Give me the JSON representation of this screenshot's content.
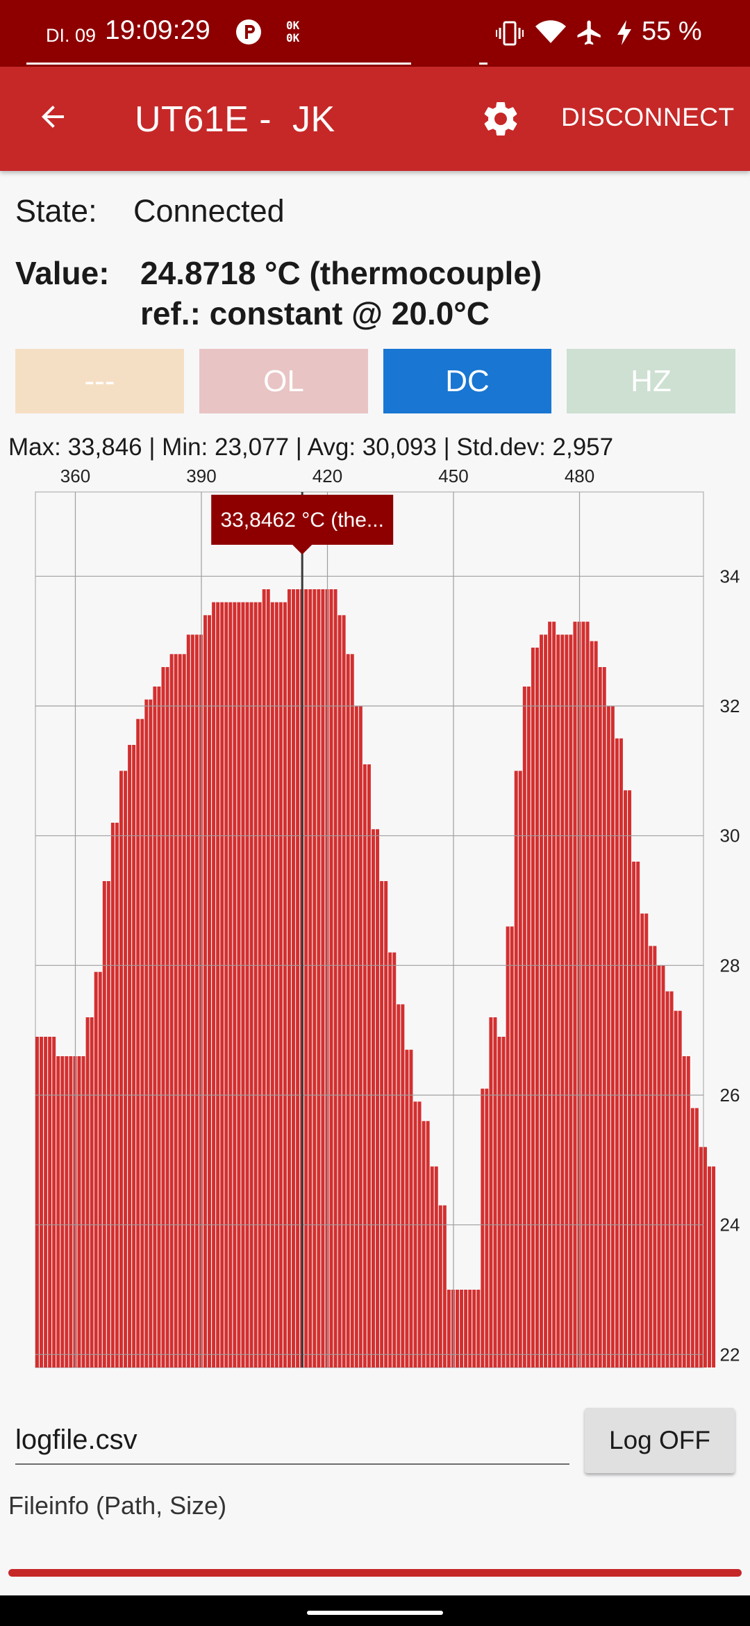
{
  "status_bar": {
    "day": "DI. 09",
    "time": "19:09:29",
    "ok_icon_text": "0K\n0K",
    "battery": "55 %",
    "icons": [
      "p-circle-icon",
      "ok-icon",
      "vibrate-icon",
      "wifi-icon",
      "airplane-icon",
      "charging-icon"
    ]
  },
  "app_bar": {
    "title": "UT61E -  JK",
    "disconnect_label": "DISCONNECT",
    "colors": {
      "bar": "#c62828",
      "status": "#8e0000"
    }
  },
  "state": {
    "label": "State:",
    "value": "Connected"
  },
  "value": {
    "label": "Value:",
    "line1": "24.8718 °C (thermocouple)",
    "line2": "ref.: constant @ 20.0°C"
  },
  "indicators": [
    {
      "label": "---",
      "active": false,
      "color": "#f5dfc4"
    },
    {
      "label": "OL",
      "active": false,
      "color": "#e9c4c4"
    },
    {
      "label": "DC",
      "active": true,
      "color": "#1976d2"
    },
    {
      "label": "HZ",
      "active": false,
      "color": "#cde0d2"
    }
  ],
  "stats_text": "Max: 33,846 | Min: 23,077 | Avg: 30,093 | Std.dev: 2,957",
  "chart_data": {
    "type": "bar",
    "x_start": 351,
    "x_step": 1,
    "xlim": [
      350.5,
      509.5
    ],
    "ylim": [
      21.8,
      35.3
    ],
    "x_ticks": [
      360,
      390,
      420,
      450,
      480
    ],
    "y_ticks": [
      22,
      24,
      26,
      28,
      30,
      32,
      34
    ],
    "x_tick_labels": [
      "360",
      "390",
      "420",
      "450",
      "480"
    ],
    "y_tick_labels": [
      "22",
      "24",
      "26",
      "28",
      "30",
      "32",
      "34"
    ],
    "x_axis_position": "top",
    "y_axis_position": "right",
    "grid": true,
    "bar_color": "#d32f2f",
    "values": [
      26.9,
      26.9,
      26.9,
      26.9,
      26.9,
      26.6,
      26.6,
      26.6,
      26.6,
      26.6,
      26.6,
      26.6,
      27.2,
      27.2,
      27.9,
      27.9,
      29.3,
      29.3,
      30.2,
      30.2,
      31.0,
      31.0,
      31.4,
      31.4,
      31.8,
      31.8,
      32.1,
      32.1,
      32.3,
      32.3,
      32.6,
      32.6,
      32.8,
      32.8,
      32.8,
      32.8,
      33.1,
      33.1,
      33.1,
      33.1,
      33.4,
      33.4,
      33.6,
      33.6,
      33.6,
      33.6,
      33.6,
      33.6,
      33.6,
      33.6,
      33.6,
      33.6,
      33.6,
      33.6,
      33.8,
      33.8,
      33.6,
      33.6,
      33.6,
      33.6,
      33.8,
      33.8,
      33.8,
      33.8,
      33.8,
      33.8,
      33.8,
      33.8,
      33.8,
      33.8,
      33.8,
      33.8,
      33.4,
      33.4,
      32.8,
      32.8,
      32.0,
      32.0,
      31.1,
      31.1,
      30.1,
      30.1,
      29.3,
      29.3,
      28.2,
      28.2,
      27.4,
      27.4,
      26.7,
      26.7,
      25.9,
      25.9,
      25.6,
      25.6,
      24.9,
      24.9,
      24.3,
      24.3,
      23.0,
      23.0,
      23.0,
      23.0,
      23.0,
      23.0,
      23.0,
      23.0,
      26.1,
      26.1,
      27.2,
      27.2,
      26.9,
      26.9,
      28.6,
      28.6,
      31.0,
      31.0,
      32.3,
      32.3,
      32.9,
      32.9,
      33.1,
      33.1,
      33.3,
      33.3,
      33.1,
      33.1,
      33.1,
      33.1,
      33.3,
      33.3,
      33.3,
      33.3,
      33.0,
      33.0,
      32.6,
      32.6,
      32.0,
      32.0,
      31.5,
      31.5,
      30.7,
      30.7,
      29.6,
      29.6,
      28.8,
      28.8,
      28.3,
      28.3,
      28.0,
      28.0,
      27.6,
      27.6,
      27.3,
      27.3,
      26.6,
      26.6,
      25.8,
      25.8,
      25.2,
      25.2,
      24.9,
      24.9
    ],
    "highlight": {
      "x": 414,
      "value": 33.846,
      "label": "33,8462 °C (the..."
    }
  },
  "log": {
    "filename": "logfile.csv",
    "button_label": "Log OFF",
    "fileinfo": "Fileinfo (Path, Size)",
    "progress": 1.0
  }
}
